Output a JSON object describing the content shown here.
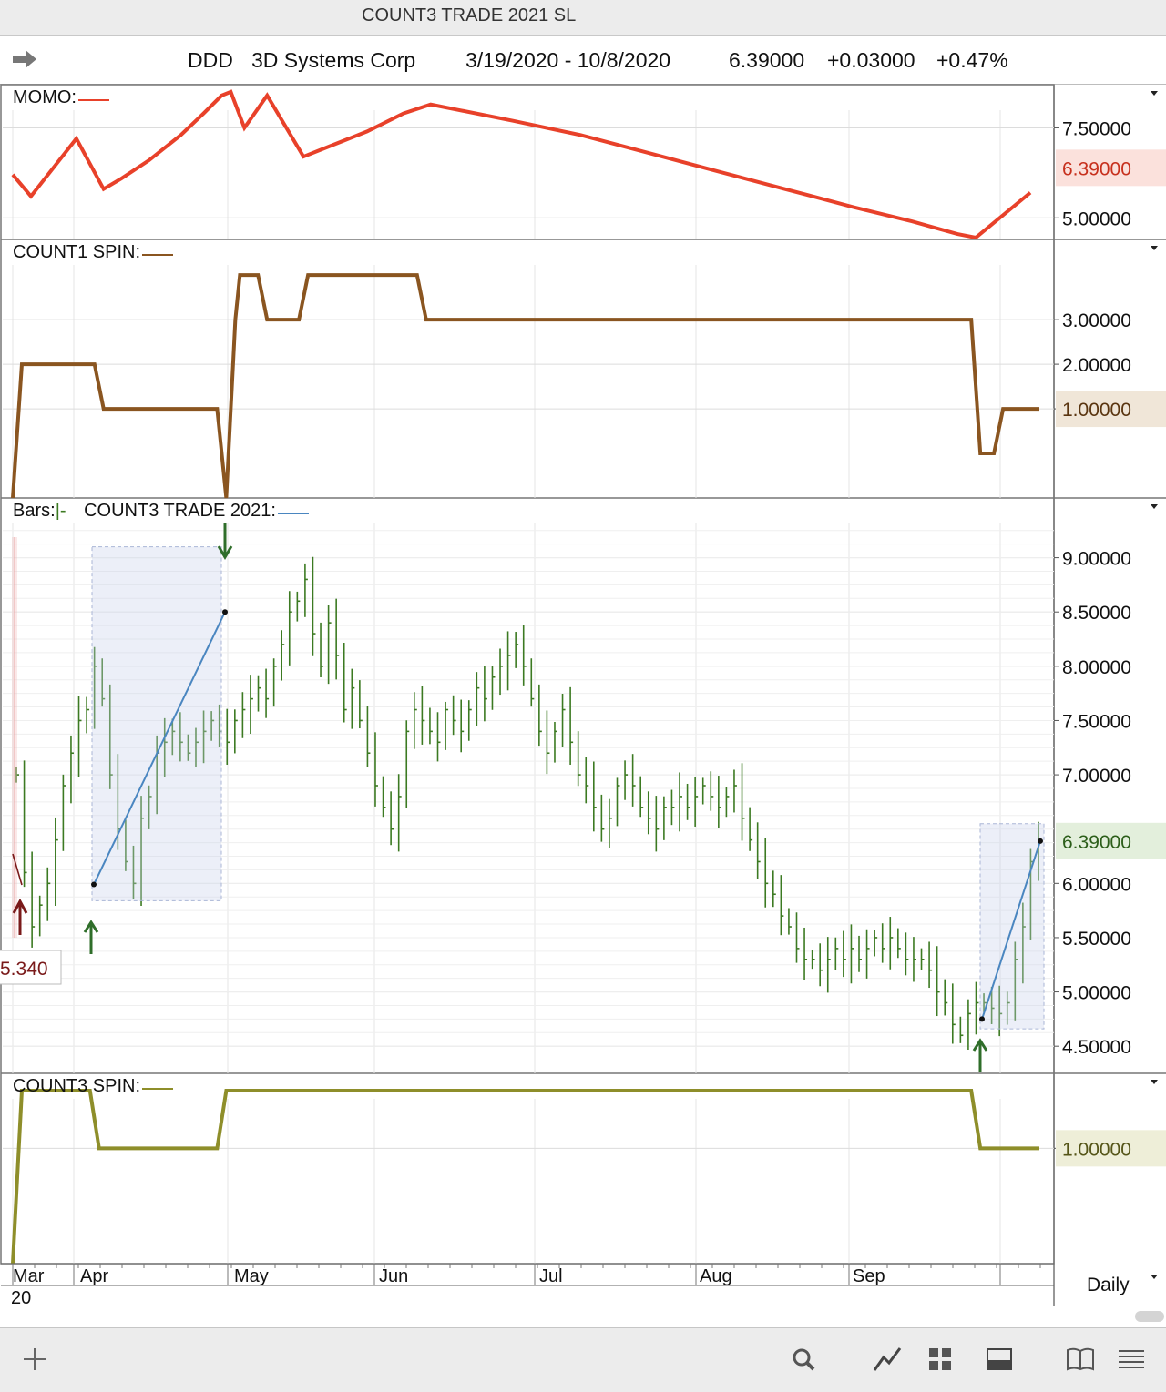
{
  "window_title": "COUNT3 TRADE 2021 SL",
  "info": {
    "symbol": "DDD",
    "company": "3D Systems Corp",
    "date_range": "3/19/2020 - 10/8/2020",
    "last": "6.39000",
    "change": "+0.03000",
    "change_pct": "+0.47%"
  },
  "period": "Daily",
  "colors": {
    "momo": "#e8412a",
    "count1": "#8a5520",
    "bars": "#3c7a22",
    "count3_trade": "#4a86c0",
    "count3_spin": "#8e8e2a",
    "entry_marker": "#7a1a1a"
  },
  "toolbar_icons": [
    "plus-icon",
    "search-icon",
    "draw-line-icon",
    "grid-layout-icon",
    "panel-layout-icon",
    "book-icon",
    "menu-icon"
  ],
  "chart_data": [
    {
      "type": "line",
      "label": "MOMO:",
      "last_label": "6.39000",
      "y_ticks": [
        "7.50000",
        "5.00000"
      ],
      "series": [
        {
          "values": [
            [
              0,
              6.2
            ],
            [
              4,
              5.6
            ],
            [
              14,
              7.2
            ],
            [
              20,
              5.8
            ],
            [
              24,
              6.1
            ],
            [
              30,
              6.6
            ],
            [
              37,
              7.3
            ],
            [
              42,
              7.9
            ],
            [
              46,
              8.4
            ],
            [
              48,
              8.5
            ],
            [
              51,
              7.5
            ],
            [
              56,
              8.4
            ],
            [
              64,
              6.7
            ],
            [
              68,
              6.9
            ],
            [
              78,
              7.4
            ],
            [
              86,
              7.9
            ],
            [
              92,
              8.15
            ],
            [
              98,
              8.0
            ],
            [
              110,
              7.7
            ],
            [
              125,
              7.3
            ],
            [
              140,
              6.8
            ],
            [
              155,
              6.3
            ],
            [
              170,
              5.8
            ],
            [
              185,
              5.3
            ],
            [
              198,
              4.9
            ],
            [
              208,
              4.55
            ],
            [
              212,
              4.45
            ],
            [
              224,
              5.7
            ]
          ]
        }
      ]
    },
    {
      "type": "line",
      "label": "COUNT1 SPIN:",
      "last_label": "1.00000",
      "y_ticks": [
        "3.00000",
        "2.00000",
        "1.00000"
      ],
      "series": [
        {
          "values": [
            [
              0,
              -1.0
            ],
            [
              2,
              2.0
            ],
            [
              18,
              2.0
            ],
            [
              20,
              1.0
            ],
            [
              45,
              1.0
            ],
            [
              47,
              -1.0
            ],
            [
              49,
              3.0
            ],
            [
              50,
              4.0
            ],
            [
              54,
              4.0
            ],
            [
              56,
              3.0
            ],
            [
              63,
              3.0
            ],
            [
              65,
              4.0
            ],
            [
              89,
              4.0
            ],
            [
              91,
              3.0
            ],
            [
              211,
              3.0
            ],
            [
              213,
              0.0
            ],
            [
              216,
              0.0
            ],
            [
              218,
              1.0
            ],
            [
              226,
              1.0
            ]
          ]
        }
      ]
    },
    {
      "type": "ohlc",
      "label": "Bars:",
      "label_suffix": "|-",
      "overlay_label": "COUNT3 TRADE 2021:",
      "last_label": "6.39000",
      "y_ticks": [
        "9.00000",
        "8.50000",
        "8.00000",
        "7.50000",
        "7.00000",
        "6.00000",
        "5.50000",
        "5.00000",
        "4.50000"
      ],
      "x_ticks": [
        "Mar",
        "Apr",
        "May",
        "Jun",
        "Jul",
        "Aug",
        "Sep"
      ],
      "x_tick_sub": "20",
      "closes": [
        7.0,
        6.1,
        5.6,
        5.8,
        6.0,
        6.4,
        6.9,
        7.2,
        7.5,
        7.6,
        8.0,
        7.7,
        7.0,
        6.5,
        6.2,
        6.0,
        6.6,
        6.8,
        7.2,
        7.3,
        7.4,
        7.3,
        7.2,
        7.3,
        7.4,
        7.5,
        7.4,
        7.3,
        7.5,
        7.6,
        7.7,
        7.8,
        7.7,
        8.0,
        8.2,
        8.5,
        8.6,
        8.8,
        8.3,
        8.0,
        8.4,
        8.1,
        7.6,
        7.8,
        7.5,
        7.2,
        6.9,
        6.7,
        6.5,
        6.8,
        7.4,
        7.6,
        7.5,
        7.4,
        7.3,
        7.6,
        7.5,
        7.4,
        7.6,
        7.8,
        7.7,
        7.9,
        8.0,
        8.1,
        8.2,
        8.0,
        7.7,
        7.4,
        7.2,
        7.4,
        7.6,
        7.3,
        7.0,
        6.9,
        6.7,
        6.5,
        6.6,
        6.9,
        7.0,
        6.9,
        6.7,
        6.6,
        6.5,
        6.7,
        6.7,
        6.8,
        6.7,
        6.8,
        6.9,
        6.8,
        6.7,
        6.8,
        6.9,
        6.6,
        6.4,
        6.2,
        6.0,
        5.9,
        5.7,
        5.6,
        5.4,
        5.3,
        5.3,
        5.2,
        5.3,
        5.4,
        5.3,
        5.4,
        5.3,
        5.4,
        5.5,
        5.4,
        5.5,
        5.4,
        5.3,
        5.3,
        5.3,
        5.2,
        5.0,
        4.9,
        4.7,
        4.6,
        4.8,
        4.9,
        4.9,
        4.85,
        4.8,
        4.9,
        5.3,
        5.6,
        6.2,
        6.39
      ],
      "trades": [
        {
          "entry": [
            5.99
          ],
          "exit": [
            8.5
          ]
        },
        {
          "entry": [
            4.75
          ],
          "exit": [
            6.39
          ]
        }
      ],
      "entry_price_label": "5.340"
    },
    {
      "type": "line",
      "label": "COUNT3 SPIN:",
      "last_label": "1.00000",
      "y_ticks": [
        "1.00000"
      ],
      "series": [
        {
          "values": [
            [
              0,
              -1.0
            ],
            [
              2,
              2.0
            ],
            [
              17,
              2.0
            ],
            [
              19,
              1.0
            ],
            [
              45,
              1.0
            ],
            [
              47,
              2.0
            ],
            [
              211,
              2.0
            ],
            [
              213,
              1.0
            ],
            [
              226,
              1.0
            ]
          ]
        }
      ]
    }
  ]
}
